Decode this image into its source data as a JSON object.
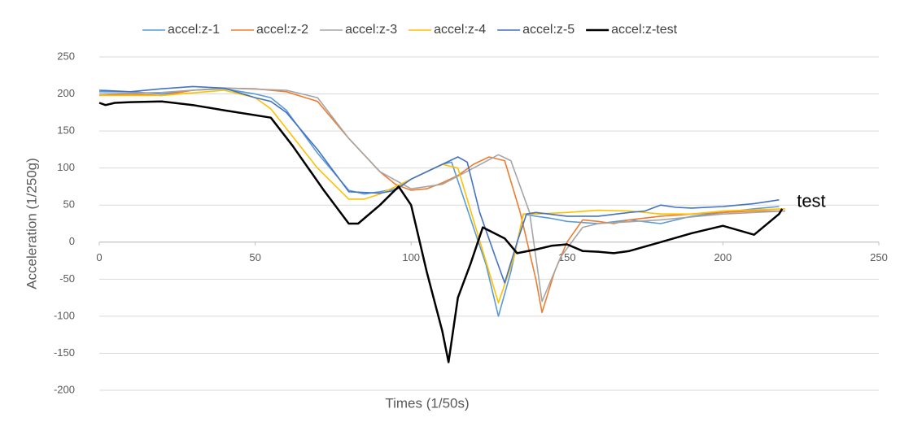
{
  "chart_data": {
    "type": "line",
    "x_label": "Times (1/50s)",
    "y_label": "Acceleration (1/250g)",
    "annotation": "test",
    "xlim": [
      0,
      250
    ],
    "xticks": [
      0,
      50,
      100,
      150,
      200,
      250
    ],
    "ylim": [
      -200,
      250
    ],
    "yticks": [
      -200,
      -150,
      -100,
      -50,
      0,
      50,
      100,
      150,
      200,
      250
    ],
    "grid": true,
    "legend": "top",
    "series": [
      {
        "name": "accel:z-1",
        "color": "#5b9bd5",
        "x": [
          0,
          10,
          20,
          30,
          40,
          50,
          55,
          60,
          70,
          80,
          85,
          90,
          95,
          100,
          110,
          113,
          120,
          124,
          128,
          132,
          136,
          140,
          145,
          150,
          160,
          170,
          180,
          190,
          200,
          210,
          218
        ],
        "values": [
          203,
          203,
          200,
          205,
          207,
          200,
          195,
          178,
          120,
          70,
          65,
          68,
          72,
          85,
          105,
          108,
          20,
          -30,
          -100,
          -40,
          38,
          35,
          32,
          28,
          25,
          30,
          25,
          35,
          40,
          45,
          48
        ]
      },
      {
        "name": "accel:z-2",
        "color": "#ed7d31",
        "x": [
          0,
          10,
          20,
          30,
          40,
          50,
          60,
          70,
          80,
          90,
          95,
          100,
          105,
          110,
          115,
          120,
          125,
          130,
          135,
          140,
          142,
          146,
          150,
          155,
          160,
          165,
          170,
          180,
          190,
          200,
          210,
          220
        ],
        "values": [
          198,
          200,
          198,
          205,
          208,
          207,
          203,
          190,
          140,
          95,
          78,
          70,
          72,
          80,
          90,
          105,
          115,
          110,
          40,
          -50,
          -95,
          -40,
          0,
          30,
          28,
          25,
          30,
          35,
          38,
          40,
          42,
          42
        ]
      },
      {
        "name": "accel:z-3",
        "color": "#a5a5a5",
        "x": [
          0,
          20,
          40,
          60,
          70,
          80,
          90,
          100,
          110,
          120,
          128,
          132,
          138,
          142,
          148,
          155,
          160,
          180,
          200,
          220
        ],
        "values": [
          200,
          202,
          208,
          205,
          195,
          140,
          95,
          72,
          78,
          100,
          118,
          110,
          40,
          -80,
          -20,
          20,
          25,
          30,
          38,
          42
        ]
      },
      {
        "name": "accel:z-4",
        "color": "#ffc000",
        "x": [
          0,
          20,
          40,
          50,
          55,
          70,
          80,
          85,
          90,
          100,
          110,
          115,
          120,
          125,
          128,
          133,
          136,
          140,
          150,
          160,
          170,
          180,
          190,
          200,
          220
        ],
        "values": [
          198,
          198,
          205,
          195,
          180,
          100,
          58,
          58,
          65,
          85,
          105,
          100,
          30,
          -40,
          -82,
          -20,
          38,
          38,
          40,
          43,
          42,
          38,
          38,
          42,
          45
        ]
      },
      {
        "name": "accel:z-5",
        "color": "#4472c4",
        "x": [
          0,
          10,
          20,
          30,
          40,
          50,
          55,
          60,
          70,
          80,
          90,
          95,
          100,
          110,
          115,
          118,
          122,
          127,
          130,
          134,
          137,
          140,
          150,
          160,
          170,
          175,
          180,
          185,
          190,
          200,
          210,
          218
        ],
        "values": [
          205,
          203,
          207,
          210,
          208,
          195,
          190,
          175,
          125,
          68,
          66,
          70,
          85,
          105,
          115,
          108,
          40,
          -20,
          -55,
          0,
          38,
          40,
          35,
          35,
          40,
          42,
          50,
          47,
          46,
          48,
          52,
          57
        ]
      },
      {
        "name": "accel:z-test",
        "color": "#000000",
        "x": [
          0,
          2,
          5,
          10,
          20,
          30,
          40,
          55,
          62,
          72,
          80,
          83,
          90,
          96,
          100,
          105,
          110,
          112,
          115,
          119,
          123,
          130,
          134,
          140,
          145,
          150,
          155,
          160,
          165,
          170,
          180,
          190,
          200,
          210,
          218,
          219
        ],
        "values": [
          188,
          185,
          188,
          189,
          190,
          185,
          178,
          168,
          130,
          70,
          25,
          25,
          50,
          75,
          50,
          -40,
          -120,
          -162,
          -75,
          -30,
          20,
          5,
          -15,
          -10,
          -5,
          -3,
          -12,
          -13,
          -15,
          -12,
          0,
          12,
          22,
          10,
          38,
          45
        ]
      }
    ]
  }
}
